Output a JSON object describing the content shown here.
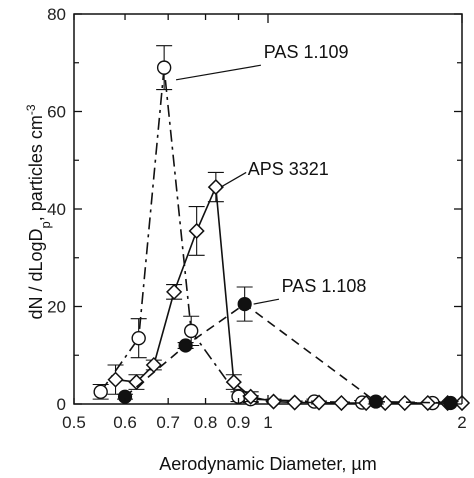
{
  "chart_data": {
    "type": "scatter",
    "title": "",
    "xlabel": "Aerodynamic Diameter, µm",
    "ylabel": "dN / dLogDp, particles cm-3",
    "ylabel_parts": {
      "main": "dN / dLogD",
      "sub": "p",
      "mid": ", particles cm",
      "sup": "-3"
    },
    "x_scale": "log",
    "xlim": [
      0.5,
      2.0
    ],
    "ylim": [
      0,
      80
    ],
    "x_ticks": [
      0.5,
      0.6,
      0.7,
      0.8,
      0.9,
      1,
      2
    ],
    "x_tick_labels": [
      "0.5",
      "0.6",
      "0.7",
      "0.8",
      "0.9",
      "1",
      "2"
    ],
    "y_ticks": [
      0,
      20,
      40,
      60,
      80
    ],
    "y_tick_labels": [
      "0",
      "20",
      "40",
      "60",
      "80"
    ],
    "grid": false,
    "series": [
      {
        "name": "PAS 1.109",
        "marker": "open-circle",
        "line": "dash-dot",
        "x": [
          0.55,
          0.63,
          0.69,
          0.76,
          0.9,
          0.94,
          1.18,
          1.4,
          1.8
        ],
        "y": [
          2.5,
          13.5,
          69,
          15,
          1.5,
          1,
          0.5,
          0.3,
          0.2
        ],
        "err": [
          1.5,
          4,
          4.5,
          3,
          1,
          0.7,
          0.5,
          0.4,
          0.3
        ]
      },
      {
        "name": "APS 3321",
        "marker": "open-diamond",
        "line": "solid",
        "x": [
          0.58,
          0.625,
          0.665,
          0.715,
          0.775,
          0.83,
          0.885,
          0.94,
          1.02,
          1.1,
          1.2,
          1.3,
          1.42,
          1.52,
          1.63,
          1.77,
          1.9,
          2.0
        ],
        "y": [
          5,
          4.5,
          8,
          23,
          35.5,
          44.5,
          4.5,
          1.5,
          0.5,
          0.3,
          0.3,
          0.2,
          0.2,
          0.2,
          0.2,
          0.2,
          0.2,
          0.2
        ],
        "err": [
          3,
          1.5,
          1,
          1.5,
          5,
          3,
          1.5,
          1,
          0.5,
          0.3,
          0.3,
          0.2,
          0.2,
          0.2,
          0.2,
          0.2,
          0.2,
          0.2
        ]
      },
      {
        "name": "PAS 1.108",
        "marker": "filled-circle",
        "line": "dash",
        "x": [
          0.6,
          0.745,
          0.92,
          1.47,
          1.92
        ],
        "y": [
          1.5,
          12,
          20.5,
          0.5,
          0.2
        ],
        "err": [
          0.5,
          0.6,
          3.5,
          0.5,
          0.3
        ]
      }
    ],
    "annotations": [
      {
        "text": "PAS 1.109",
        "x": 0.985,
        "y": 71
      },
      {
        "text": "APS 3321",
        "x": 0.93,
        "y": 47
      },
      {
        "text": "PAS 1.108",
        "x": 1.05,
        "y": 23
      }
    ]
  }
}
